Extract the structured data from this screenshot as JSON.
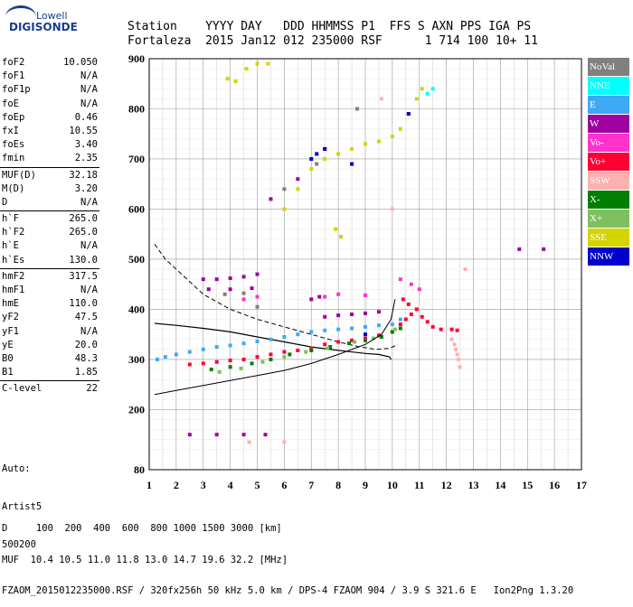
{
  "logo": {
    "line1": "Lowell",
    "line2": "DIGISONDE"
  },
  "header": {
    "labels": "Station    YYYY DAY   DDD HHMMSS P1  FFS S AXN PPS IGA PS",
    "values": "Fortaleza  2015 Jan12 012 235000 RSF      1 714 100 10+ 11"
  },
  "params": [
    {
      "name": "foF2",
      "value": "10.050"
    },
    {
      "name": "foF1",
      "value": "N/A"
    },
    {
      "name": "foF1p",
      "value": "N/A"
    },
    {
      "name": "foE",
      "value": "N/A"
    },
    {
      "name": "foEp",
      "value": "0.46"
    },
    {
      "name": "fxI",
      "value": "10.55"
    },
    {
      "name": "foEs",
      "value": "3.40"
    },
    {
      "name": "fmin",
      "value": "2.35"
    },
    {
      "sep": true
    },
    {
      "name": "MUF(D)",
      "value": "32.18"
    },
    {
      "name": "M(D)",
      "value": "3.20"
    },
    {
      "name": "D",
      "value": "N/A"
    },
    {
      "sep": true
    },
    {
      "name": "h`F",
      "value": "265.0"
    },
    {
      "name": "h`F2",
      "value": "265.0"
    },
    {
      "name": "h`E",
      "value": "N/A"
    },
    {
      "name": "h`Es",
      "value": "130.0"
    },
    {
      "sep": true
    },
    {
      "name": "hmF2",
      "value": "317.5"
    },
    {
      "name": "hmF1",
      "value": "N/A"
    },
    {
      "name": "hmE",
      "value": "110.0"
    },
    {
      "name": "yF2",
      "value": "47.5"
    },
    {
      "name": "yF1",
      "value": "N/A"
    },
    {
      "name": "yE",
      "value": "20.0"
    },
    {
      "name": "B0",
      "value": "48.3"
    },
    {
      "name": "B1",
      "value": "1.85"
    },
    {
      "sep": true
    },
    {
      "name": "C-level",
      "value": "22"
    }
  ],
  "auto": {
    "line1": "Auto:",
    "line2": "Artist5",
    "line3": "500200"
  },
  "bottom": {
    "d_row": "D     100  200  400  600  800 1000 1500 3000 [km]",
    "muf_row": "MUF  10.4 10.5 11.0 11.8 13.0 14.7 19.6 32.2 [MHz]",
    "footer": "FZAOM_2015012235000.RSF / 320fx256h 50 kHz 5.0 km / DPS-4 FZAOM 904 / 3.9 S 321.6 E   Ion2Png 1.3.20"
  },
  "legend": [
    {
      "label": "NoVal",
      "color": "#808080",
      "text": "#ffffff"
    },
    {
      "label": "NNE",
      "color": "#00ffff",
      "text": "#ffffff"
    },
    {
      "label": "E",
      "color": "#3fa9f5",
      "text": "#ffffff"
    },
    {
      "label": "W",
      "color": "#a000a0",
      "text": "#ffffff"
    },
    {
      "label": "Vo-",
      "color": "#ff33cc",
      "text": "#ffffff"
    },
    {
      "label": "Vo+",
      "color": "#ff0033",
      "text": "#ffffff"
    },
    {
      "label": "SSW",
      "color": "#ffb0b0",
      "text": "#ffffff"
    },
    {
      "label": "X-",
      "color": "#007f00",
      "text": "#ffffff"
    },
    {
      "label": "X+",
      "color": "#7fbf5f",
      "text": "#ffffff"
    },
    {
      "label": "SSE",
      "color": "#d4d400",
      "text": "#ffffff"
    },
    {
      "label": "NNW",
      "color": "#0000cc",
      "text": "#ffffff"
    }
  ],
  "chart_data": {
    "type": "scatter",
    "title": "",
    "xlabel": "",
    "ylabel": "",
    "xlim": [
      1,
      17
    ],
    "ylim": [
      80,
      900
    ],
    "xticks": [
      "1",
      "2",
      "3",
      "4",
      "5",
      "6",
      "7",
      "8",
      "9",
      "10",
      "11",
      "12",
      "13",
      "14",
      "15",
      "16",
      "17"
    ],
    "yticks": [
      {
        "value": 80,
        "label": "80"
      },
      {
        "value": 200,
        "label": "200"
      },
      {
        "value": 300,
        "label": "300"
      },
      {
        "value": 400,
        "label": "400"
      },
      {
        "value": 500,
        "label": "500"
      },
      {
        "value": 600,
        "label": "600"
      },
      {
        "value": 700,
        "label": "700"
      },
      {
        "value": 800,
        "label": "800"
      },
      {
        "value": 900,
        "label": "900"
      }
    ],
    "grid": true,
    "profile_line": [
      [
        9.95,
        300
      ],
      [
        9.9,
        305
      ],
      [
        9.5,
        310
      ],
      [
        9.0,
        312
      ],
      [
        8.0,
        318
      ],
      [
        7.0,
        325
      ],
      [
        6.0,
        335
      ],
      [
        5.0,
        345
      ],
      [
        4.0,
        355
      ],
      [
        3.0,
        362
      ],
      [
        2.0,
        368
      ],
      [
        1.2,
        372
      ]
    ],
    "trace_line": [
      [
        1.2,
        230
      ],
      [
        2.0,
        238
      ],
      [
        3.0,
        248
      ],
      [
        4.0,
        258
      ],
      [
        5.0,
        268
      ],
      [
        6.0,
        278
      ],
      [
        7.0,
        292
      ],
      [
        8.0,
        310
      ],
      [
        9.0,
        330
      ],
      [
        9.6,
        350
      ],
      [
        9.95,
        380
      ],
      [
        10.1,
        420
      ]
    ],
    "dashed_line": [
      [
        1.2,
        530
      ],
      [
        1.6,
        500
      ],
      [
        2.2,
        470
      ],
      [
        3.0,
        430
      ],
      [
        4.0,
        400
      ],
      [
        5.0,
        380
      ],
      [
        6.0,
        365
      ],
      [
        7.0,
        350
      ],
      [
        8.0,
        335
      ],
      [
        8.8,
        325
      ],
      [
        9.4,
        320
      ],
      [
        9.9,
        322
      ],
      [
        10.2,
        330
      ]
    ],
    "series": [
      {
        "name": "E",
        "color": "#3fa9f5",
        "points": [
          [
            1.3,
            300
          ],
          [
            1.6,
            305
          ],
          [
            2.0,
            310
          ],
          [
            2.5,
            315
          ],
          [
            3.0,
            320
          ],
          [
            3.5,
            325
          ],
          [
            4.0,
            328
          ],
          [
            4.5,
            332
          ],
          [
            5.0,
            336
          ],
          [
            5.5,
            340
          ],
          [
            6.0,
            345
          ],
          [
            6.5,
            350
          ],
          [
            7.0,
            355
          ],
          [
            7.5,
            358
          ],
          [
            8.0,
            360
          ],
          [
            8.5,
            362
          ],
          [
            9.0,
            365
          ],
          [
            9.5,
            368
          ],
          [
            10.0,
            370
          ],
          [
            10.3,
            380
          ]
        ]
      },
      {
        "name": "W",
        "color": "#a000a0",
        "points": [
          [
            3.0,
            460
          ],
          [
            3.5,
            460
          ],
          [
            4.0,
            462
          ],
          [
            4.5,
            465
          ],
          [
            5.0,
            470
          ],
          [
            3.2,
            440
          ],
          [
            4.0,
            440
          ],
          [
            4.8,
            442
          ],
          [
            7.5,
            385
          ],
          [
            8.0,
            388
          ],
          [
            8.5,
            390
          ],
          [
            9.0,
            392
          ],
          [
            9.5,
            395
          ],
          [
            7.0,
            420
          ],
          [
            7.3,
            425
          ],
          [
            5.5,
            620
          ],
          [
            6.5,
            660
          ],
          [
            7.5,
            720
          ],
          [
            10.6,
            790
          ],
          [
            14.7,
            520
          ],
          [
            15.6,
            520
          ],
          [
            2.5,
            150
          ],
          [
            3.5,
            150
          ],
          [
            4.5,
            150
          ],
          [
            5.3,
            150
          ]
        ]
      },
      {
        "name": "Vo+",
        "color": "#ff0033",
        "points": [
          [
            2.5,
            290
          ],
          [
            3.0,
            292
          ],
          [
            3.5,
            295
          ],
          [
            4.0,
            298
          ],
          [
            4.5,
            300
          ],
          [
            5.0,
            305
          ],
          [
            5.5,
            310
          ],
          [
            6.0,
            315
          ],
          [
            6.5,
            318
          ],
          [
            7.0,
            322
          ],
          [
            7.5,
            330
          ],
          [
            8.0,
            335
          ],
          [
            8.5,
            338
          ],
          [
            9.0,
            342
          ],
          [
            9.5,
            348
          ],
          [
            10.0,
            355
          ],
          [
            10.3,
            370
          ],
          [
            10.5,
            380
          ],
          [
            10.7,
            390
          ],
          [
            10.9,
            400
          ],
          [
            11.1,
            385
          ],
          [
            11.3,
            375
          ],
          [
            11.5,
            365
          ],
          [
            11.8,
            360
          ],
          [
            12.2,
            360
          ],
          [
            12.4,
            358
          ],
          [
            10.4,
            420
          ],
          [
            10.6,
            410
          ]
        ]
      },
      {
        "name": "Vo-",
        "color": "#ff33cc",
        "points": [
          [
            4.5,
            420
          ],
          [
            5.0,
            425
          ],
          [
            7.5,
            425
          ],
          [
            8.0,
            430
          ],
          [
            9.0,
            428
          ],
          [
            10.3,
            460
          ],
          [
            10.7,
            450
          ],
          [
            11.0,
            440
          ]
        ]
      },
      {
        "name": "X-",
        "color": "#007f00",
        "points": [
          [
            3.3,
            280
          ],
          [
            4.0,
            285
          ],
          [
            4.8,
            292
          ],
          [
            5.5,
            300
          ],
          [
            6.2,
            310
          ],
          [
            7.0,
            318
          ],
          [
            7.7,
            325
          ],
          [
            8.4,
            332
          ],
          [
            9.0,
            338
          ],
          [
            9.6,
            345
          ],
          [
            10.0,
            355
          ],
          [
            10.3,
            362
          ]
        ]
      },
      {
        "name": "X+",
        "color": "#7fbf5f",
        "points": [
          [
            3.6,
            275
          ],
          [
            4.4,
            282
          ],
          [
            5.2,
            295
          ],
          [
            6.0,
            305
          ],
          [
            6.8,
            315
          ],
          [
            7.6,
            322
          ],
          [
            8.6,
            335
          ],
          [
            9.3,
            342
          ],
          [
            10.1,
            360
          ]
        ]
      },
      {
        "name": "SSE",
        "color": "#d4d400",
        "points": [
          [
            3.9,
            860
          ],
          [
            4.2,
            855
          ],
          [
            4.6,
            880
          ],
          [
            5.0,
            890
          ],
          [
            5.4,
            890
          ],
          [
            6.0,
            600
          ],
          [
            6.5,
            640
          ],
          [
            7.0,
            680
          ],
          [
            7.5,
            700
          ],
          [
            8.0,
            710
          ],
          [
            8.5,
            720
          ],
          [
            9.0,
            730
          ],
          [
            9.5,
            735
          ],
          [
            10.0,
            745
          ],
          [
            10.3,
            760
          ],
          [
            10.6,
            790
          ],
          [
            10.9,
            820
          ],
          [
            11.1,
            840
          ],
          [
            7.9,
            560
          ],
          [
            8.1,
            545
          ]
        ]
      },
      {
        "name": "NNE",
        "color": "#00ffff",
        "points": [
          [
            11.3,
            830
          ],
          [
            11.5,
            840
          ]
        ]
      },
      {
        "name": "NNW",
        "color": "#0000cc",
        "points": [
          [
            7.0,
            700
          ],
          [
            7.2,
            710
          ],
          [
            7.5,
            720
          ],
          [
            8.5,
            690
          ],
          [
            10.6,
            790
          ],
          [
            9.0,
            350
          ]
        ]
      },
      {
        "name": "SSW",
        "color": "#ffb0b0",
        "points": [
          [
            12.2,
            340
          ],
          [
            12.3,
            330
          ],
          [
            12.35,
            320
          ],
          [
            12.4,
            310
          ],
          [
            12.45,
            300
          ],
          [
            12.5,
            285
          ],
          [
            12.7,
            480
          ],
          [
            4.7,
            135
          ],
          [
            6.0,
            135
          ],
          [
            9.6,
            820
          ],
          [
            10.0,
            600
          ]
        ]
      },
      {
        "name": "NoVal",
        "color": "#808080",
        "points": [
          [
            3.8,
            430
          ],
          [
            4.5,
            432
          ],
          [
            5.0,
            405
          ],
          [
            6.0,
            640
          ],
          [
            7.2,
            690
          ],
          [
            8.7,
            800
          ]
        ]
      }
    ]
  }
}
